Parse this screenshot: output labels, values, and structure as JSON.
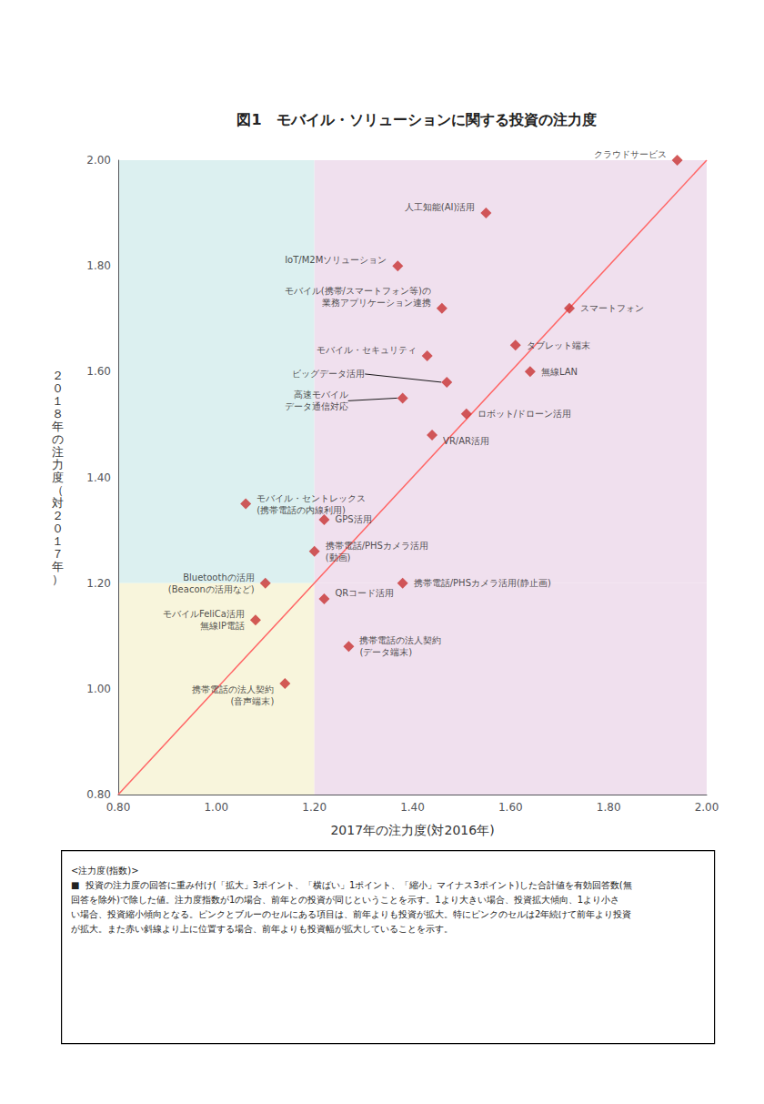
{
  "chart_data": {
    "type": "scatter",
    "title": "図1　モバイル・ソリューションに関する投資の注力度",
    "xlabel": "2017年の注力度(対2016年)",
    "ylabel": "２０１８年の注力度（対２０１７年）",
    "xlim": [
      0.8,
      2.0
    ],
    "ylim": [
      0.8,
      2.0
    ],
    "xticks": [
      {
        "value": 0.8,
        "label": "0.80"
      },
      {
        "value": 1.0,
        "label": "1.00"
      },
      {
        "value": 1.2,
        "label": "1.20"
      },
      {
        "value": 1.4,
        "label": "1.40"
      },
      {
        "value": 1.6,
        "label": "1.60"
      },
      {
        "value": 1.8,
        "label": "1.80"
      },
      {
        "value": 2.0,
        "label": "2.00"
      }
    ],
    "yticks": [
      {
        "value": 0.8,
        "label": "0.80"
      },
      {
        "value": 1.0,
        "label": "1.00"
      },
      {
        "value": 1.2,
        "label": "1.20"
      },
      {
        "value": 1.4,
        "label": "1.40"
      },
      {
        "value": 1.6,
        "label": "1.60"
      },
      {
        "value": 1.8,
        "label": "1.80"
      },
      {
        "value": 2.0,
        "label": "2.00"
      }
    ],
    "grid": true,
    "quadrants": [
      {
        "x": [
          0.8,
          1.2
        ],
        "y": [
          1.2,
          2.0
        ],
        "color": "#DCF0F0"
      },
      {
        "x": [
          1.2,
          2.0
        ],
        "y": [
          1.2,
          2.0
        ],
        "color": "#F0E0EE"
      },
      {
        "x": [
          0.8,
          1.2
        ],
        "y": [
          0.8,
          1.2
        ],
        "color": "#F8F5DC"
      },
      {
        "x": [
          1.2,
          2.0
        ],
        "y": [
          0.8,
          1.2
        ],
        "color": "#F0E0EE"
      }
    ],
    "series": [
      {
        "type": "scatter",
        "marker": "diamond",
        "color": "#C83232",
        "x": [
          1.94,
          1.55,
          1.37,
          1.46,
          1.72,
          1.61,
          1.43,
          1.64,
          1.47,
          1.38,
          1.51,
          1.44,
          1.06,
          1.22,
          1.2,
          1.38,
          1.1,
          1.22,
          1.08,
          1.27,
          1.14
        ],
        "values": [
          2.0,
          1.9,
          1.8,
          1.72,
          1.72,
          1.65,
          1.63,
          1.6,
          1.58,
          1.55,
          1.52,
          1.48,
          1.35,
          1.32,
          1.26,
          1.2,
          1.2,
          1.17,
          1.13,
          1.08,
          1.01
        ],
        "labels": [
          "クラウドサービス",
          "人工知能(AI)活用",
          "IoT/M2Mソリューション",
          "モバイル(携帯/スマートフォン等)の\n業務アプリケーション連携",
          "スマートフォン",
          "タブレット端末",
          "モバイル・セキュリティ",
          "無線LAN",
          "ビッグデータ活用",
          "高速モバイル\nデータ通信対応",
          "ロボット/ドローン活用",
          "VR/AR活用",
          "モバイル・セントレックス\n(携帯電話の内線利用)",
          "GPS活用",
          "携帯電話/PHSカメラ活用\n(動画)",
          "携帯電話/PHSカメラ活用(静止画)",
          "Bluetoothの活用\n(Beaconの活用など)",
          "QRコード活用",
          "モバイルFeliCa活用\n無線IP電話",
          "携帯電話の法人契約\n(データ端末)",
          "携帯電話の法人契約\n(音声端末)"
        ]
      },
      {
        "type": "line",
        "color": "#FF6666",
        "x": [
          0.8,
          2.0
        ],
        "values": [
          0.8,
          2.0
        ]
      }
    ],
    "note": "<注力度(指数)>\n■  投資の注力度の回答に重み付け(「拡大」3ポイント、「横ばい」1ポイント、「縮小」マイナス3ポイント)した合計値を有効回答数(無\n回答を除外)で除した値。注力度指数が1の場合、前年との投資が同じということを示す。1より大きい場合、投資拡大傾向、1より小さ\nい場合、投資縮小傾向となる。ピンクとブルーのセルにある項目は、前年よりも投資が拡大。特にピンクのセルは2年続けて前年より投資\nが拡大。また赤い斜線より上に位置する場合、前年よりも投資幅が拡大していることを示す。"
  }
}
